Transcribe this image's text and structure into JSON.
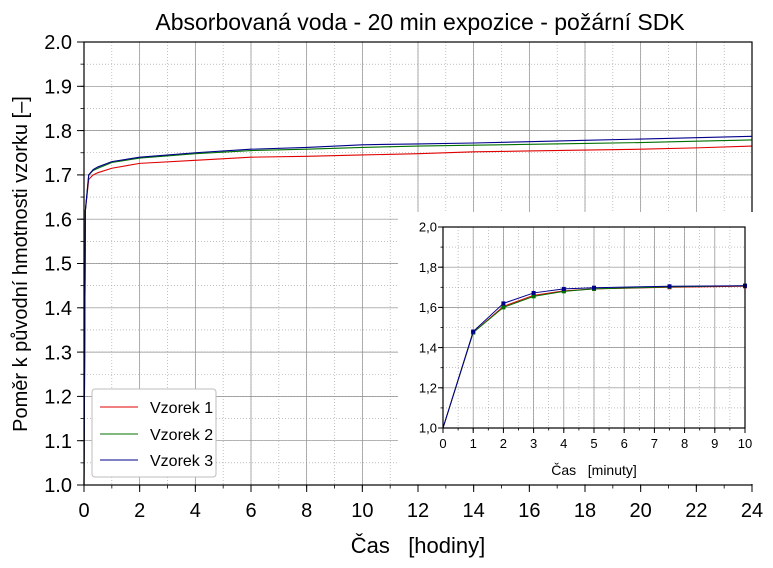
{
  "chart_data": [
    {
      "type": "line",
      "title": "Absorbovaná voda - 20 min expozice - požární SDK",
      "xlabel": "Čas   [hodiny]",
      "ylabel": "Poměr k původní hmotnosti vzorku  [–]",
      "xlim": [
        0,
        24
      ],
      "ylim": [
        1.0,
        2.0
      ],
      "x_ticks": [
        "0",
        "2",
        "4",
        "6",
        "8",
        "10",
        "12",
        "14",
        "16",
        "18",
        "20",
        "22",
        "24"
      ],
      "y_ticks": [
        "1.0",
        "1.1",
        "1.2",
        "1.3",
        "1.4",
        "1.5",
        "1.6",
        "1.7",
        "1.8",
        "1.9",
        "2.0"
      ],
      "grid": true,
      "legend_position": "bottom-left",
      "series": [
        {
          "name": "Vzorek 1",
          "color": "#e00000",
          "x": [
            0,
            0.05,
            0.17,
            0.33,
            0.5,
            1,
            2,
            4,
            6,
            8,
            10,
            12,
            14,
            16,
            18,
            20,
            22,
            24
          ],
          "y": [
            1.0,
            1.62,
            1.69,
            1.7,
            1.705,
            1.715,
            1.726,
            1.733,
            1.74,
            1.742,
            1.745,
            1.748,
            1.752,
            1.754,
            1.756,
            1.758,
            1.761,
            1.765
          ]
        },
        {
          "name": "Vzorek 2",
          "color": "#007000",
          "x": [
            0,
            0.05,
            0.17,
            0.33,
            0.5,
            1,
            2,
            4,
            6,
            8,
            10,
            12,
            14,
            16,
            18,
            20,
            22,
            24
          ],
          "y": [
            1.0,
            1.62,
            1.7,
            1.71,
            1.715,
            1.728,
            1.738,
            1.748,
            1.755,
            1.758,
            1.762,
            1.765,
            1.767,
            1.769,
            1.771,
            1.773,
            1.776,
            1.779
          ]
        },
        {
          "name": "Vzorek 3",
          "color": "#00008b",
          "x": [
            0,
            0.05,
            0.17,
            0.33,
            0.5,
            1,
            2,
            4,
            6,
            8,
            10,
            12,
            14,
            16,
            18,
            20,
            22,
            24
          ],
          "y": [
            1.0,
            1.62,
            1.7,
            1.712,
            1.718,
            1.73,
            1.74,
            1.75,
            1.758,
            1.762,
            1.768,
            1.77,
            1.772,
            1.775,
            1.778,
            1.781,
            1.784,
            1.787
          ]
        }
      ]
    },
    {
      "type": "line",
      "xlabel": "Čas   [minuty]",
      "xlim": [
        0,
        10
      ],
      "ylim": [
        1.0,
        2.0
      ],
      "x_ticks": [
        "0",
        "1",
        "2",
        "3",
        "4",
        "5",
        "6",
        "7",
        "8",
        "9",
        "10"
      ],
      "y_ticks": [
        "1,0",
        "1,2",
        "1,4",
        "1,6",
        "1,8",
        "2,0"
      ],
      "grid": true,
      "series": [
        {
          "color": "#e00000",
          "x": [
            0,
            1,
            2,
            3,
            4,
            5,
            7.5,
            10
          ],
          "y": [
            1.0,
            1.475,
            1.605,
            1.66,
            1.682,
            1.692,
            1.7,
            1.705
          ]
        },
        {
          "color": "#007000",
          "x": [
            0,
            1,
            2,
            3,
            4,
            5,
            7.5,
            10
          ],
          "y": [
            1.0,
            1.475,
            1.6,
            1.655,
            1.68,
            1.692,
            1.702,
            1.708
          ]
        },
        {
          "color": "#00008b",
          "x": [
            0,
            1,
            2,
            3,
            4,
            5,
            7.5,
            10
          ],
          "y": [
            1.0,
            1.48,
            1.62,
            1.672,
            1.692,
            1.698,
            1.705,
            1.708
          ]
        }
      ]
    }
  ]
}
